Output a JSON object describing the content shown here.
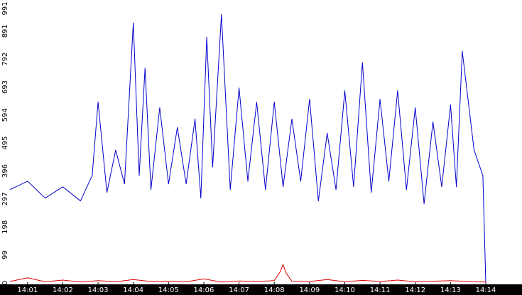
{
  "chart_data": {
    "type": "line",
    "title": "",
    "xlabel": "",
    "ylabel": "",
    "ylim": [
      0,
      991
    ],
    "y_ticks": [
      "0",
      "99",
      "198",
      "297",
      "396",
      "495",
      "594",
      "693",
      "792",
      "891",
      "991"
    ],
    "x_ticks": [
      "14:01",
      "14:02",
      "14:03",
      "14:04",
      "14:05",
      "14:06",
      "14:07",
      "14:08",
      "14:09",
      "14:10",
      "14:11",
      "14:12",
      "14:13",
      "14:14"
    ],
    "grid": false,
    "legend": "none",
    "colors": {
      "series_1": "#0000cc",
      "series_2": "#dd0000",
      "axis_bar": "#000000",
      "tick_text": "#ffffff"
    },
    "series": [
      {
        "x": [
          "14:00:30",
          "14:01:00",
          "14:01:30",
          "14:02:00",
          "14:02:30",
          "14:02:50",
          "14:03:00",
          "14:03:15",
          "14:03:30",
          "14:03:45",
          "14:04:00",
          "14:04:10",
          "14:04:20",
          "14:04:30",
          "14:04:45",
          "14:05:00",
          "14:05:15",
          "14:05:30",
          "14:05:45",
          "14:05:55",
          "14:06:05",
          "14:06:15",
          "14:06:30",
          "14:06:45",
          "14:07:00",
          "14:07:15",
          "14:07:30",
          "14:07:45",
          "14:08:00",
          "14:08:15",
          "14:08:30",
          "14:08:45",
          "14:09:00",
          "14:09:15",
          "14:09:30",
          "14:09:45",
          "14:10:00",
          "14:10:15",
          "14:10:30",
          "14:10:45",
          "14:11:00",
          "14:11:15",
          "14:11:30",
          "14:11:45",
          "14:12:00",
          "14:12:15",
          "14:12:30",
          "14:12:45",
          "14:13:00",
          "14:13:10",
          "14:13:20",
          "14:13:40",
          "14:13:55",
          "14:14:00"
        ],
        "values": [
          330,
          360,
          300,
          340,
          290,
          380,
          640,
          320,
          470,
          350,
          920,
          380,
          760,
          330,
          620,
          350,
          550,
          350,
          580,
          300,
          870,
          410,
          950,
          330,
          690,
          360,
          640,
          330,
          640,
          340,
          580,
          360,
          650,
          290,
          530,
          330,
          680,
          340,
          780,
          320,
          650,
          360,
          680,
          330,
          620,
          280,
          570,
          340,
          630,
          340,
          820,
          470,
          380,
          0
        ]
      },
      {
        "x": [
          "14:00:30",
          "14:01:00",
          "14:01:30",
          "14:02:00",
          "14:02:30",
          "14:03:00",
          "14:03:30",
          "14:04:00",
          "14:04:30",
          "14:05:00",
          "14:05:30",
          "14:06:00",
          "14:06:30",
          "14:07:00",
          "14:07:30",
          "14:08:00",
          "14:08:10",
          "14:08:15",
          "14:08:20",
          "14:08:30",
          "14:09:00",
          "14:09:30",
          "14:10:00",
          "14:10:30",
          "14:11:00",
          "14:11:30",
          "14:12:00",
          "14:12:30",
          "14:13:00",
          "14:13:30",
          "14:14:00"
        ],
        "values": [
          5,
          18,
          4,
          10,
          3,
          8,
          4,
          12,
          5,
          6,
          4,
          14,
          3,
          7,
          5,
          8,
          40,
          65,
          35,
          6,
          5,
          12,
          4,
          9,
          5,
          10,
          4,
          6,
          8,
          5,
          3
        ]
      }
    ]
  }
}
